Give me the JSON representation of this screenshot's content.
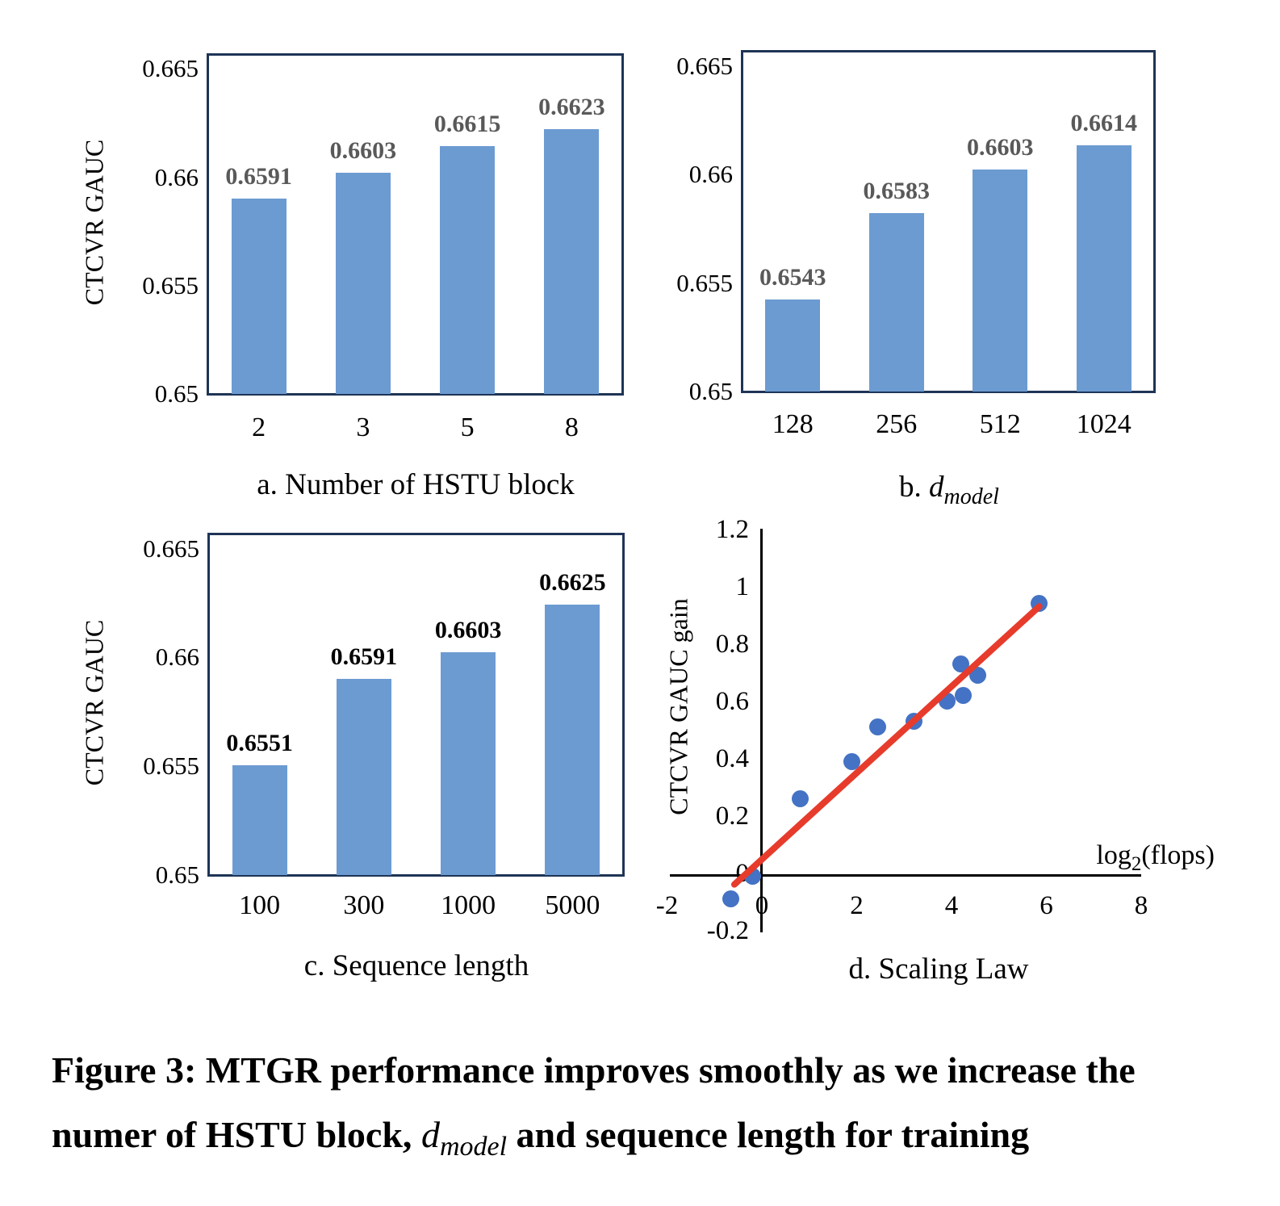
{
  "figure": {
    "caption_line1": "Figure 3: MTGR performance improves smoothly as we increase the",
    "caption_line2_pre": "numer of HSTU block, ",
    "caption_var": "d",
    "caption_var_sub": "model",
    "caption_line2_post": " and sequence length for training"
  },
  "colors": {
    "bar_fill": "#6c9bd1",
    "plot_border": "#1f3456",
    "value_label_gray": "#595959",
    "value_label_black": "#000000",
    "scatter_dot": "#4472c4",
    "trend_line": "#e73b2c",
    "axis_black": "#000000"
  },
  "chart_data": [
    {
      "id": "a",
      "type": "bar",
      "title": "a. Number of HSTU block",
      "ylabel": "CTCVR GAUC",
      "categories": [
        "2",
        "3",
        "5",
        "8"
      ],
      "values": [
        0.6591,
        0.6603,
        0.6615,
        0.6623
      ],
      "value_labels": [
        "0.6591",
        "0.6603",
        "0.6615",
        "0.6623"
      ],
      "yticks": [
        "0.665",
        "0.66",
        "0.655",
        "0.65"
      ],
      "ylim": [
        0.65,
        0.665
      ],
      "grid": false,
      "legend": "none",
      "value_label_color": "#595959"
    },
    {
      "id": "b",
      "type": "bar",
      "title": "b. d_model",
      "title_prefix": "b. ",
      "title_var": "d",
      "title_sub": "model",
      "categories": [
        "128",
        "256",
        "512",
        "1024"
      ],
      "values": [
        0.6543,
        0.6583,
        0.6603,
        0.6614
      ],
      "value_labels": [
        "0.6543",
        "0.6583",
        "0.6603",
        "0.6614"
      ],
      "yticks": [
        "0.665",
        "0.66",
        "0.655",
        "0.65"
      ],
      "ylim": [
        0.65,
        0.665
      ],
      "grid": false,
      "legend": "none",
      "value_label_color": "#595959"
    },
    {
      "id": "c",
      "type": "bar",
      "title": "c. Sequence length",
      "ylabel": "CTCVR GAUC",
      "categories": [
        "100",
        "300",
        "1000",
        "5000"
      ],
      "values": [
        0.6551,
        0.6591,
        0.6603,
        0.6625
      ],
      "value_labels": [
        "0.6551",
        "0.6591",
        "0.6603",
        "0.6625"
      ],
      "yticks": [
        "0.665",
        "0.66",
        "0.655",
        "0.65"
      ],
      "ylim": [
        0.65,
        0.665
      ],
      "grid": false,
      "legend": "none",
      "value_label_color": "#000000"
    },
    {
      "id": "d",
      "type": "scatter",
      "title": "d. Scaling Law",
      "ylabel": "CTCVR GAUC gain",
      "xlabel": "log2(flops)",
      "xlabel_parts": {
        "log": "log",
        "sub": "2",
        "rest": "(flops)"
      },
      "xticks": [
        "-2",
        "0",
        "2",
        "4",
        "6",
        "8"
      ],
      "yticks": [
        "1.2",
        "1",
        "0.8",
        "0.6",
        "0.4",
        "0.2",
        "0",
        "-0.2"
      ],
      "xlim": [
        -2,
        8
      ],
      "ylim": [
        -0.2,
        1.2
      ],
      "grid": false,
      "legend": "none",
      "points": [
        [
          -0.65,
          -0.08
        ],
        [
          -0.2,
          0.0
        ],
        [
          0.8,
          0.27
        ],
        [
          1.9,
          0.4
        ],
        [
          2.45,
          0.52
        ],
        [
          3.2,
          0.54
        ],
        [
          3.9,
          0.61
        ],
        [
          4.25,
          0.63
        ],
        [
          4.2,
          0.74
        ],
        [
          4.55,
          0.7
        ],
        [
          5.85,
          0.95
        ]
      ],
      "trendline": {
        "x1": -0.58,
        "y1": -0.03,
        "x2": 5.85,
        "y2": 0.94
      }
    }
  ]
}
